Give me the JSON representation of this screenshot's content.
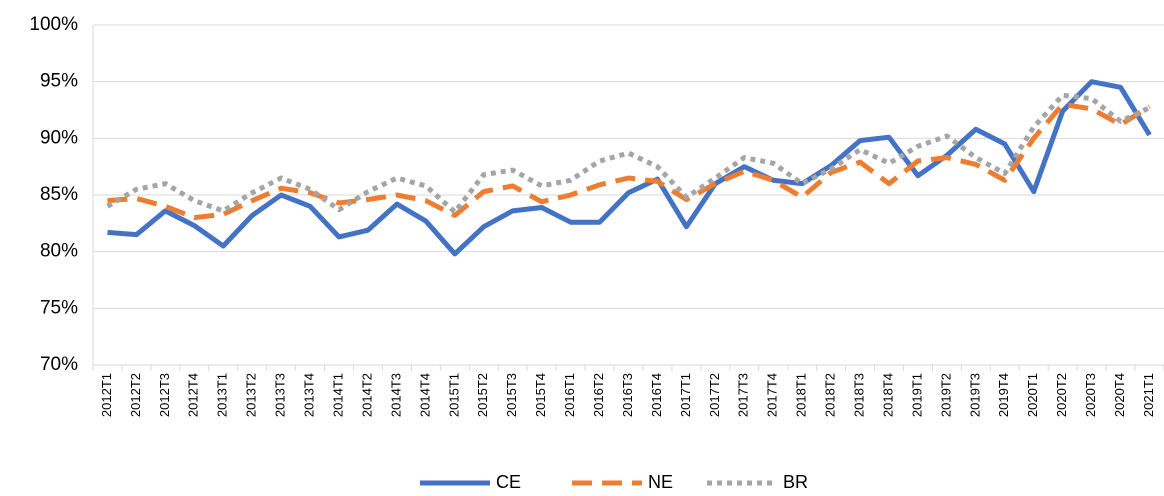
{
  "chart_data": {
    "type": "line",
    "categories": [
      "2012T1",
      "2012T2",
      "2012T3",
      "2012T4",
      "2013T1",
      "2013T2",
      "2013T3",
      "2013T4",
      "2014T1",
      "2014T2",
      "2014T3",
      "2014T4",
      "2015T1",
      "2015T2",
      "2015T3",
      "2015T4",
      "2016T1",
      "2016T2",
      "2016T3",
      "2016T4",
      "2017T1",
      "2017T2",
      "2017T3",
      "2017T4",
      "2018T1",
      "2018T2",
      "2018T3",
      "2018T4",
      "2019T1",
      "2019T2",
      "2019T3",
      "2019T4",
      "2020T1",
      "2020T2",
      "2020T3",
      "2020T4",
      "2021T1"
    ],
    "series": [
      {
        "name": "CE",
        "color": "#4472c4",
        "style": "solid",
        "values": [
          81.7,
          81.5,
          83.6,
          82.3,
          80.5,
          83.2,
          85.0,
          84.0,
          81.3,
          81.9,
          84.2,
          82.7,
          79.8,
          82.2,
          83.6,
          83.9,
          82.6,
          82.6,
          85.2,
          86.4,
          82.2,
          86.0,
          87.5,
          86.3,
          86.0,
          87.6,
          89.8,
          90.1,
          86.7,
          88.5,
          90.8,
          89.5,
          85.3,
          92.4,
          95.0,
          94.5,
          90.3
        ]
      },
      {
        "name": "NE",
        "color": "#ed7d31",
        "style": "dash",
        "values": [
          84.5,
          84.7,
          84.0,
          83.0,
          83.3,
          84.5,
          85.6,
          85.2,
          84.3,
          84.6,
          85.0,
          84.5,
          83.2,
          85.3,
          85.8,
          84.4,
          85.0,
          85.9,
          86.5,
          86.2,
          84.6,
          86.0,
          87.1,
          86.3,
          84.8,
          87.0,
          87.9,
          86.0,
          88.0,
          88.3,
          87.7,
          86.3,
          90.0,
          93.0,
          92.6,
          91.2,
          92.8
        ]
      },
      {
        "name": "BR",
        "color": "#a5a5a5",
        "style": "dot",
        "values": [
          84.0,
          85.5,
          86.0,
          84.5,
          83.6,
          85.2,
          86.5,
          85.5,
          83.7,
          85.3,
          86.5,
          85.8,
          83.5,
          86.8,
          87.2,
          85.8,
          86.3,
          88.0,
          88.7,
          87.5,
          84.8,
          86.5,
          88.3,
          87.8,
          86.0,
          87.3,
          89.0,
          87.8,
          89.3,
          90.2,
          88.3,
          86.9,
          91.0,
          93.8,
          93.5,
          91.5,
          92.7
        ]
      }
    ],
    "ylim": [
      70,
      100
    ],
    "yticks": [
      {
        "value": 70,
        "label": "70%"
      },
      {
        "value": 75,
        "label": "75%"
      },
      {
        "value": 80,
        "label": "80%"
      },
      {
        "value": 85,
        "label": "85%"
      },
      {
        "value": 90,
        "label": "90%"
      },
      {
        "value": 95,
        "label": "95%"
      },
      {
        "value": 100,
        "label": "100%"
      }
    ],
    "grid": true,
    "legend": "bottom"
  }
}
